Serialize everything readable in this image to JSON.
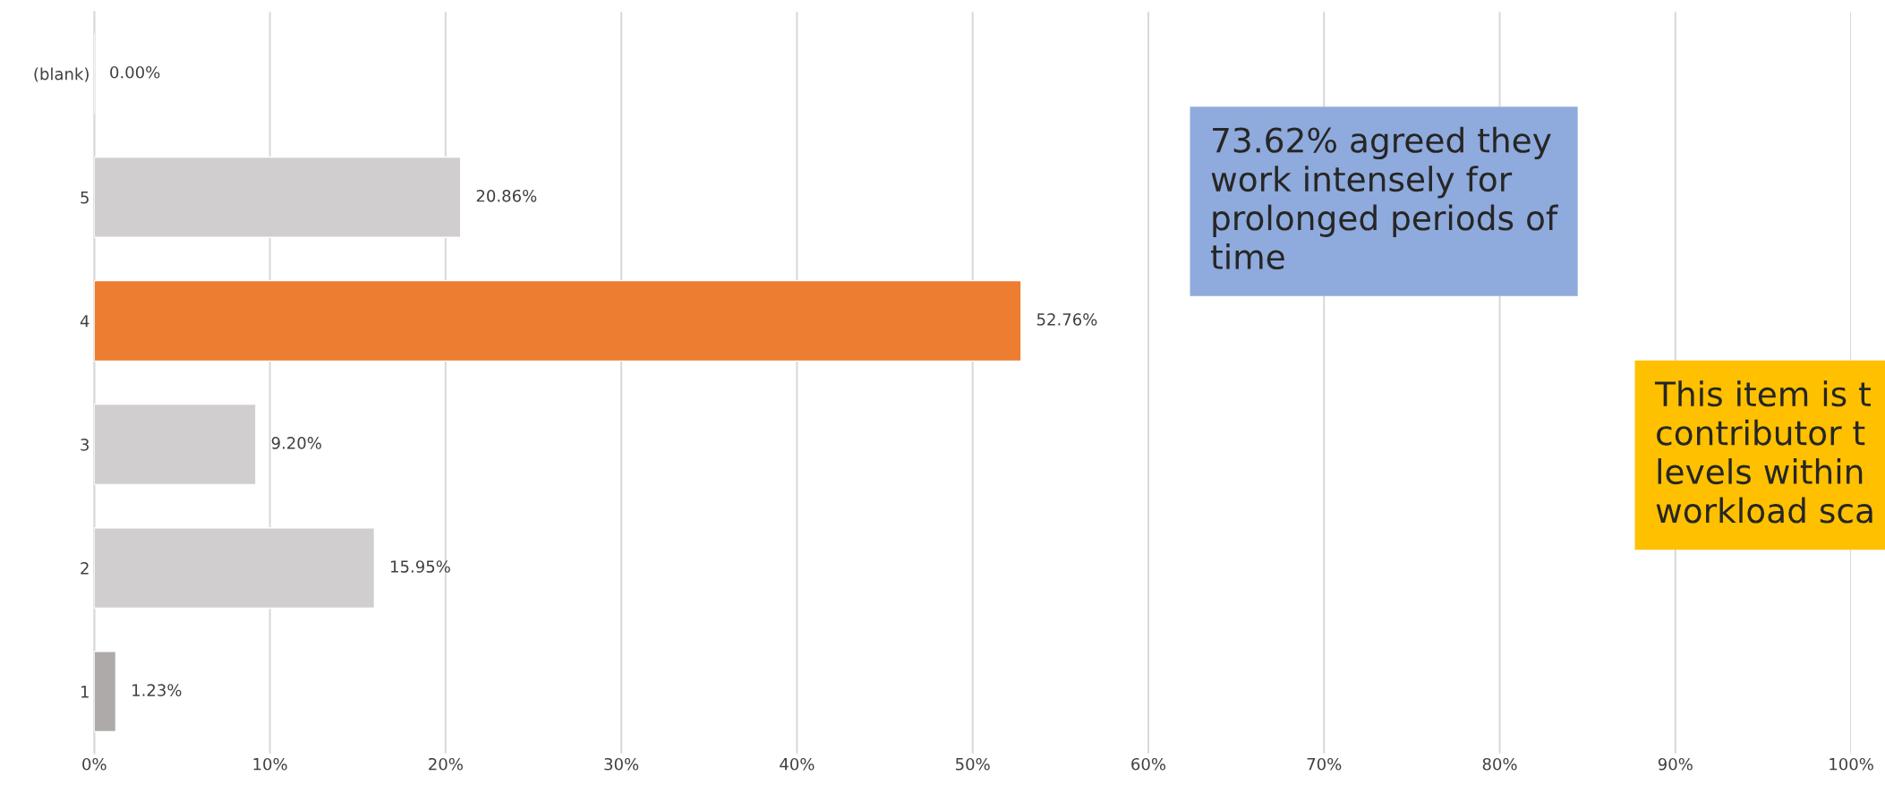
{
  "chart_data": {
    "type": "bar",
    "orientation": "horizontal",
    "categories": [
      "(blank)",
      "5",
      "4",
      "3",
      "2",
      "1"
    ],
    "values": [
      0,
      20.86,
      52.76,
      9.2,
      15.95,
      1.23
    ],
    "value_labels": [
      "0.00%",
      "20.86%",
      "52.76%",
      "9.20%",
      "15.95%",
      "1.23%"
    ],
    "colors": [
      null,
      "#d0cece",
      "#ed7d31",
      "#d0cece",
      "#d0cece",
      "#aeaaaa"
    ],
    "xlim": [
      0,
      100
    ],
    "xticks": [
      {
        "value": 0,
        "label": "0%"
      },
      {
        "value": 10,
        "label": "10%"
      },
      {
        "value": 20,
        "label": "20%"
      },
      {
        "value": 30,
        "label": "30%"
      },
      {
        "value": 40,
        "label": "40%"
      },
      {
        "value": 50,
        "label": "50%"
      },
      {
        "value": 60,
        "label": "60%"
      },
      {
        "value": 70,
        "label": "70%"
      },
      {
        "value": 80,
        "label": "80%"
      },
      {
        "value": 90,
        "label": "90%"
      },
      {
        "value": 100,
        "label": "100%"
      }
    ],
    "grid": "x",
    "annotations": [
      "73.62% agreed they\nwork intensely for\nprolonged periods of\ntime",
      "This item is t\ncontributor t\nlevels within\nworkload sca"
    ]
  }
}
